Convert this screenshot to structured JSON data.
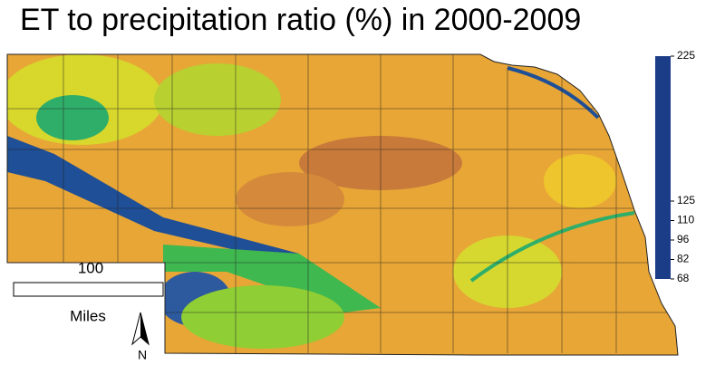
{
  "title": "ET to precipitation ratio (%) in 2000-2009",
  "colorbar": {
    "ticks": [
      225,
      125,
      110,
      96,
      82,
      68
    ],
    "colors": [
      "#1b3c86",
      "#2aa890",
      "#33cc2a",
      "#f2ee1e",
      "#eea634",
      "#c46a3e"
    ]
  },
  "scale_bar": {
    "distance": 100,
    "unit": "Miles"
  },
  "north_arrow": "N"
}
